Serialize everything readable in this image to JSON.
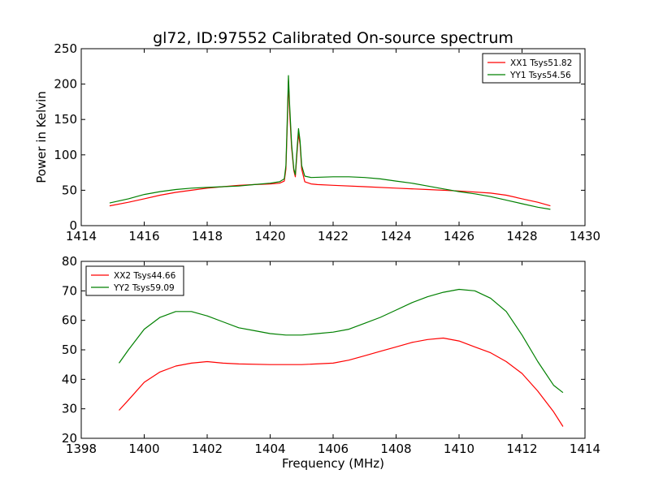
{
  "chart_data": [
    {
      "type": "line",
      "title": "gl72, ID:97552 Calibrated On-source spectrum",
      "xlabel": "",
      "ylabel": "Power in Kelvin",
      "xlim": [
        1414,
        1430
      ],
      "ylim": [
        0,
        250
      ],
      "xticks": [
        "1414",
        "1416",
        "1418",
        "1420",
        "1422",
        "1424",
        "1426",
        "1428",
        "1430"
      ],
      "yticks": [
        "0",
        "50",
        "100",
        "150",
        "200",
        "250"
      ],
      "legend_position": "top-right",
      "series": [
        {
          "name": "XX1 Tsys51.82",
          "color": "#ff0000",
          "points": [
            [
              1414.9,
              28
            ],
            [
              1415.5,
              33
            ],
            [
              1416.0,
              38
            ],
            [
              1416.5,
              43
            ],
            [
              1417.0,
              47
            ],
            [
              1417.5,
              50
            ],
            [
              1418.0,
              53
            ],
            [
              1418.5,
              55
            ],
            [
              1419.0,
              57
            ],
            [
              1419.5,
              58
            ],
            [
              1420.0,
              59
            ],
            [
              1420.3,
              60
            ],
            [
              1420.45,
              63
            ],
            [
              1420.5,
              80
            ],
            [
              1420.55,
              150
            ],
            [
              1420.58,
              205
            ],
            [
              1420.62,
              160
            ],
            [
              1420.68,
              110
            ],
            [
              1420.75,
              78
            ],
            [
              1420.8,
              69
            ],
            [
              1420.85,
              100
            ],
            [
              1420.9,
              130
            ],
            [
              1420.95,
              115
            ],
            [
              1421.0,
              80
            ],
            [
              1421.1,
              62
            ],
            [
              1421.3,
              59
            ],
            [
              1421.5,
              58
            ],
            [
              1422.0,
              57
            ],
            [
              1423.0,
              55
            ],
            [
              1424.0,
              53
            ],
            [
              1425.0,
              51
            ],
            [
              1426.0,
              49
            ],
            [
              1427.0,
              46
            ],
            [
              1427.5,
              43
            ],
            [
              1428.0,
              38
            ],
            [
              1428.5,
              33
            ],
            [
              1428.9,
              28
            ]
          ]
        },
        {
          "name": "YY1 Tsys54.56",
          "color": "#008000",
          "points": [
            [
              1414.9,
              32
            ],
            [
              1415.5,
              38
            ],
            [
              1416.0,
              44
            ],
            [
              1416.5,
              48
            ],
            [
              1417.0,
              51
            ],
            [
              1417.5,
              53
            ],
            [
              1418.0,
              54
            ],
            [
              1418.5,
              55
            ],
            [
              1419.0,
              56
            ],
            [
              1419.5,
              58
            ],
            [
              1420.0,
              60
            ],
            [
              1420.3,
              62
            ],
            [
              1420.45,
              66
            ],
            [
              1420.5,
              85
            ],
            [
              1420.55,
              160
            ],
            [
              1420.58,
              212
            ],
            [
              1420.62,
              170
            ],
            [
              1420.68,
              115
            ],
            [
              1420.75,
              80
            ],
            [
              1420.8,
              72
            ],
            [
              1420.85,
              105
            ],
            [
              1420.9,
              137
            ],
            [
              1420.95,
              120
            ],
            [
              1421.0,
              85
            ],
            [
              1421.1,
              70
            ],
            [
              1421.3,
              68
            ],
            [
              1422.0,
              69
            ],
            [
              1422.5,
              69
            ],
            [
              1423.0,
              68
            ],
            [
              1423.5,
              66
            ],
            [
              1424.0,
              63
            ],
            [
              1424.5,
              60
            ],
            [
              1425.0,
              56
            ],
            [
              1425.5,
              52
            ],
            [
              1426.0,
              48
            ],
            [
              1426.5,
              45
            ],
            [
              1427.0,
              41
            ],
            [
              1427.5,
              36
            ],
            [
              1428.0,
              31
            ],
            [
              1428.5,
              26
            ],
            [
              1428.9,
              23
            ]
          ]
        }
      ]
    },
    {
      "type": "line",
      "title": "",
      "xlabel": "Frequency (MHz)",
      "ylabel": "",
      "xlim": [
        1398,
        1414
      ],
      "ylim": [
        20,
        80
      ],
      "xticks": [
        "1398",
        "1400",
        "1402",
        "1404",
        "1406",
        "1408",
        "1410",
        "1412",
        "1414"
      ],
      "yticks": [
        "20",
        "30",
        "40",
        "50",
        "60",
        "70",
        "80"
      ],
      "legend_position": "top-left",
      "series": [
        {
          "name": "XX2 Tsys44.66",
          "color": "#ff0000",
          "points": [
            [
              1399.2,
              29.5
            ],
            [
              1399.5,
              33
            ],
            [
              1400.0,
              39
            ],
            [
              1400.5,
              42.5
            ],
            [
              1401.0,
              44.5
            ],
            [
              1401.5,
              45.5
            ],
            [
              1402.0,
              46
            ],
            [
              1402.5,
              45.5
            ],
            [
              1403.0,
              45.2
            ],
            [
              1404.0,
              45
            ],
            [
              1405.0,
              45
            ],
            [
              1406.0,
              45.5
            ],
            [
              1406.5,
              46.5
            ],
            [
              1407.0,
              48
            ],
            [
              1407.5,
              49.5
            ],
            [
              1408.0,
              51
            ],
            [
              1408.5,
              52.5
            ],
            [
              1409.0,
              53.5
            ],
            [
              1409.5,
              54
            ],
            [
              1410.0,
              53
            ],
            [
              1410.5,
              51
            ],
            [
              1411.0,
              49
            ],
            [
              1411.5,
              46
            ],
            [
              1412.0,
              42
            ],
            [
              1412.5,
              36
            ],
            [
              1413.0,
              29
            ],
            [
              1413.3,
              24
            ]
          ]
        },
        {
          "name": "YY2 Tsys59.09",
          "color": "#008000",
          "points": [
            [
              1399.2,
              45.5
            ],
            [
              1399.5,
              50
            ],
            [
              1400.0,
              57
            ],
            [
              1400.5,
              61
            ],
            [
              1401.0,
              63
            ],
            [
              1401.5,
              63
            ],
            [
              1402.0,
              61.5
            ],
            [
              1402.5,
              59.5
            ],
            [
              1403.0,
              57.5
            ],
            [
              1403.5,
              56.5
            ],
            [
              1404.0,
              55.5
            ],
            [
              1404.5,
              55
            ],
            [
              1405.0,
              55
            ],
            [
              1405.5,
              55.5
            ],
            [
              1406.0,
              56
            ],
            [
              1406.5,
              57
            ],
            [
              1407.0,
              59
            ],
            [
              1407.5,
              61
            ],
            [
              1408.0,
              63.5
            ],
            [
              1408.5,
              66
            ],
            [
              1409.0,
              68
            ],
            [
              1409.5,
              69.5
            ],
            [
              1410.0,
              70.5
            ],
            [
              1410.5,
              70
            ],
            [
              1411.0,
              67.5
            ],
            [
              1411.5,
              63
            ],
            [
              1412.0,
              55
            ],
            [
              1412.5,
              46
            ],
            [
              1413.0,
              38
            ],
            [
              1413.3,
              35.5
            ]
          ]
        }
      ]
    }
  ]
}
